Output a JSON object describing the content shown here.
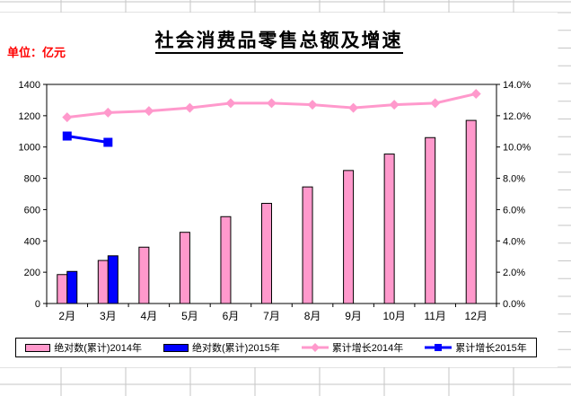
{
  "sheet": {
    "gridline_color": "#c6c6c6"
  },
  "chart": {
    "title": "社会消费品零售总额及增速",
    "unit_label": "单位：亿元",
    "unit_label_color": "#ff0000",
    "background": "#ffffff"
  },
  "chart_data": {
    "type": "bar",
    "subtype": "combo-bar-line-dual-axis",
    "title": "社会消费品零售总额及增速",
    "categories": [
      "2月",
      "3月",
      "4月",
      "5月",
      "6月",
      "7月",
      "8月",
      "9月",
      "10月",
      "11月",
      "12月"
    ],
    "series": [
      {
        "id": "abs-2014",
        "name": "绝对数(累计)2014年",
        "type": "bar",
        "axis": "left",
        "color": "#ff99cc",
        "values": [
          185,
          275,
          360,
          455,
          555,
          640,
          745,
          850,
          955,
          1060,
          1170
        ]
      },
      {
        "id": "abs-2015",
        "name": "绝对数(累计)2015年",
        "type": "bar",
        "axis": "left",
        "color": "#0000ff",
        "values": [
          205,
          305,
          null,
          null,
          null,
          null,
          null,
          null,
          null,
          null,
          null
        ]
      },
      {
        "id": "growth-2014",
        "name": "累计增长2014年",
        "type": "line",
        "marker": "diamond",
        "axis": "right",
        "color": "#ff99cc",
        "values": [
          11.9,
          12.2,
          12.3,
          12.5,
          12.8,
          12.8,
          12.7,
          12.5,
          12.7,
          12.8,
          13.4
        ]
      },
      {
        "id": "growth-2015",
        "name": "累计增长2015年",
        "type": "line",
        "marker": "square",
        "axis": "right",
        "color": "#0000ff",
        "values": [
          10.7,
          10.3,
          null,
          null,
          null,
          null,
          null,
          null,
          null,
          null,
          null
        ]
      }
    ],
    "left_axis": {
      "unit": "亿元",
      "min": 0,
      "max": 1400,
      "step": 200,
      "labels": [
        "0",
        "200",
        "400",
        "600",
        "800",
        "1000",
        "1200",
        "1400"
      ]
    },
    "right_axis": {
      "unit": "%",
      "min": 0,
      "max": 14,
      "step": 2,
      "labels": [
        "0.0%",
        "2.0%",
        "4.0%",
        "6.0%",
        "8.0%",
        "10.0%",
        "12.0%",
        "14.0%"
      ]
    },
    "legend_position": "bottom",
    "grid": "off"
  }
}
